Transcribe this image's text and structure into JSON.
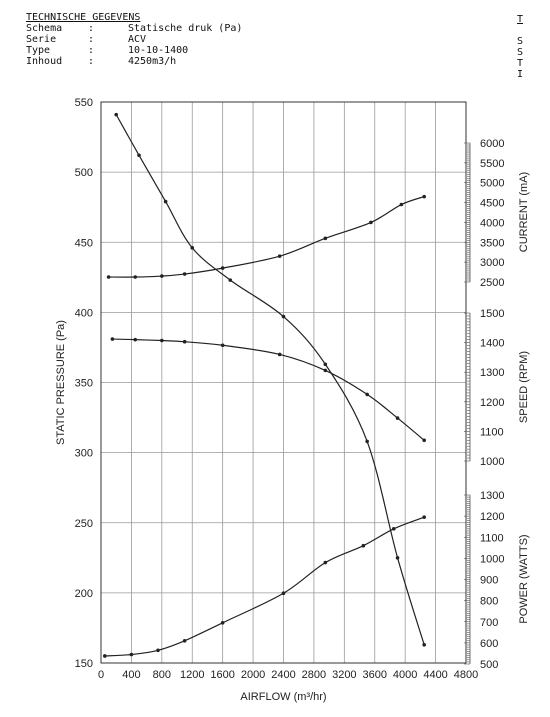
{
  "spec": {
    "title": "TECHNISCHE GEGEVENS",
    "rows": [
      {
        "key": "Schema",
        "value": "Statische druk (Pa)"
      },
      {
        "key": "Serie",
        "value": "ACV"
      },
      {
        "key": "Type",
        "value": "10-10-1400"
      },
      {
        "key": "Inhoud",
        "value": "4250m3/h"
      }
    ],
    "colon": ":"
  },
  "spec_clipped": {
    "title": "T",
    "letters": [
      "S",
      "S",
      "T",
      "I"
    ]
  },
  "chart_data": {
    "type": "line",
    "xlabel": "AIRFLOW (m³/hr)",
    "xlim": [
      0,
      4800
    ],
    "xticks": [
      0,
      400,
      800,
      1200,
      1600,
      2000,
      2400,
      2800,
      3200,
      3600,
      4000,
      4400,
      4800
    ],
    "grid": true,
    "left_axis": {
      "label": "STATIC PRESSURE (Pa)",
      "lim": [
        150,
        550
      ],
      "ticks": [
        150,
        200,
        250,
        300,
        350,
        400,
        450,
        500,
        550
      ]
    },
    "right_axes": [
      {
        "label": "CURRENT (mA)",
        "lim": [
          2500,
          6000
        ],
        "ticks": [
          2500,
          3000,
          3500,
          4000,
          4500,
          5000,
          5500,
          6000
        ]
      },
      {
        "label": "SPEED (RPM)",
        "lim": [
          1000,
          1500
        ],
        "ticks": [
          1000,
          1100,
          1200,
          1300,
          1400,
          1500
        ]
      },
      {
        "label": "POWER (WATTS)",
        "lim": [
          500,
          1300
        ],
        "ticks": [
          500,
          600,
          700,
          800,
          900,
          1000,
          1100,
          1200,
          1300
        ]
      }
    ],
    "series": [
      {
        "axis": "left",
        "x": [
          200,
          500,
          850,
          1200,
          1700,
          2400,
          2950,
          3500,
          3900,
          4250
        ],
        "y": [
          541,
          512,
          479,
          446,
          423,
          397,
          363,
          308,
          225,
          163
        ]
      },
      {
        "axis": "CURRENT (mA)",
        "x": [
          100,
          450,
          800,
          1100,
          1600,
          2350,
          2950,
          3550,
          3950,
          4250
        ],
        "y": [
          2625,
          2625,
          2650,
          2700,
          2850,
          3150,
          3600,
          4000,
          4450,
          4650
        ]
      },
      {
        "axis": "SPEED (RPM)",
        "x": [
          150,
          450,
          800,
          1100,
          1600,
          2350,
          2950,
          3500,
          3900,
          4250
        ],
        "y": [
          1412,
          1410,
          1407,
          1403,
          1391,
          1360,
          1306,
          1225,
          1145,
          1070
        ]
      },
      {
        "axis": "POWER (WATTS)",
        "x": [
          50,
          400,
          750,
          1100,
          1600,
          2400,
          2950,
          3450,
          3850,
          4250
        ],
        "y": [
          538,
          545,
          565,
          610,
          695,
          835,
          980,
          1060,
          1140,
          1195
        ]
      }
    ]
  }
}
